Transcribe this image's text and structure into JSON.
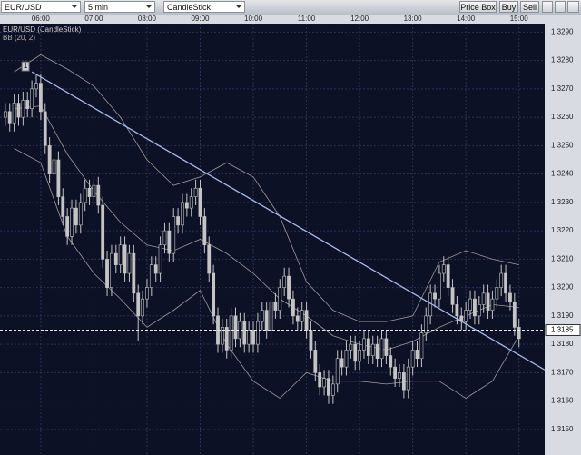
{
  "toolbar": {
    "symbol": "EUR/USD",
    "interval": "5 min",
    "chart_type": "CandleStick",
    "buttons": [
      "Price Box",
      "Buy",
      "Sell"
    ]
  },
  "chart_data": {
    "type": "candlestick",
    "title": "EUR/USD (CandleStick)",
    "indicator": "BB (20, 2)",
    "x": [
      320,
      325,
      330,
      335,
      340,
      345,
      350,
      355,
      360,
      365,
      370,
      375,
      380,
      385,
      390,
      395,
      400,
      405,
      410,
      415,
      420,
      425,
      430,
      435,
      440,
      445,
      450,
      455,
      460,
      465,
      470,
      475,
      480,
      485,
      490,
      495,
      500,
      505,
      510,
      515,
      520,
      525,
      530,
      535,
      540,
      545,
      550,
      555,
      560,
      565,
      570,
      575,
      580,
      585,
      590,
      595,
      600,
      605,
      610,
      615,
      620,
      625,
      630,
      635,
      640,
      645,
      650,
      655,
      660,
      665,
      670,
      675,
      680,
      685,
      690,
      695,
      700,
      705,
      710,
      715,
      720,
      725,
      730,
      735,
      740,
      745,
      750,
      755,
      760,
      765,
      770,
      775,
      780,
      785,
      790,
      795,
      800,
      805,
      810,
      815,
      820,
      825,
      830,
      835,
      840,
      845,
      850,
      855,
      860,
      865,
      870,
      875,
      880,
      885,
      890,
      895,
      900
    ],
    "open": [
      1.326,
      1.3262,
      1.3258,
      1.3265,
      1.326,
      1.3266,
      1.3263,
      1.327,
      1.3272,
      1.3262,
      1.325,
      1.324,
      1.3245,
      1.3232,
      1.3225,
      1.3218,
      1.3228,
      1.3222,
      1.323,
      1.3235,
      1.3232,
      1.3236,
      1.3229,
      1.321,
      1.32,
      1.3212,
      1.3208,
      1.3215,
      1.3205,
      1.3212,
      1.3198,
      1.319,
      1.3196,
      1.32,
      1.3208,
      1.3205,
      1.3215,
      1.322,
      1.3212,
      1.3225,
      1.3222,
      1.323,
      1.3228,
      1.3232,
      1.3235,
      1.3225,
      1.3215,
      1.3205,
      1.319,
      1.318,
      1.3186,
      1.3178,
      1.319,
      1.3182,
      1.3188,
      1.318,
      1.3185,
      1.318,
      1.3188,
      1.3192,
      1.3185,
      1.3195,
      1.3192,
      1.32,
      1.3204,
      1.3196,
      1.319,
      1.3188,
      1.3192,
      1.3185,
      1.3178,
      1.317,
      1.3165,
      1.3168,
      1.3162,
      1.3166,
      1.3175,
      1.3172,
      1.3178,
      1.318,
      1.3174,
      1.3178,
      1.3182,
      1.3176,
      1.318,
      1.3175,
      1.3182,
      1.3176,
      1.3172,
      1.3168,
      1.317,
      1.3164,
      1.3172,
      1.3178,
      1.3175,
      1.3184,
      1.319,
      1.3198,
      1.3196,
      1.3205,
      1.3208,
      1.32,
      1.3194,
      1.319,
      1.3188,
      1.3192,
      1.3196,
      1.319,
      1.3194,
      1.3198,
      1.3192,
      1.3196,
      1.32,
      1.3205,
      1.3198,
      1.3195,
      1.3186
    ],
    "high": [
      1.3265,
      1.3265,
      1.3268,
      1.3268,
      1.3269,
      1.3269,
      1.3273,
      1.3275,
      1.3275,
      1.3265,
      1.3253,
      1.3248,
      1.3248,
      1.3235,
      1.3228,
      1.3231,
      1.3231,
      1.3233,
      1.3238,
      1.3238,
      1.3239,
      1.3239,
      1.3232,
      1.3213,
      1.3215,
      1.3215,
      1.3218,
      1.3218,
      1.3215,
      1.3215,
      1.3201,
      1.3199,
      1.3203,
      1.3211,
      1.3211,
      1.3218,
      1.3223,
      1.3223,
      1.3228,
      1.3228,
      1.3233,
      1.3233,
      1.3235,
      1.3238,
      1.3238,
      1.3228,
      1.3218,
      1.3208,
      1.3193,
      1.3189,
      1.3189,
      1.3193,
      1.3193,
      1.3191,
      1.3191,
      1.3188,
      1.3188,
      1.3191,
      1.3195,
      1.3195,
      1.3198,
      1.3198,
      1.3203,
      1.3207,
      1.3207,
      1.3199,
      1.3193,
      1.3195,
      1.3195,
      1.3188,
      1.3181,
      1.3173,
      1.3171,
      1.3171,
      1.3169,
      1.3178,
      1.3178,
      1.3181,
      1.3183,
      1.3183,
      1.3181,
      1.3185,
      1.3185,
      1.3183,
      1.3183,
      1.3185,
      1.3185,
      1.3179,
      1.3175,
      1.3173,
      1.3173,
      1.3175,
      1.3181,
      1.3181,
      1.3187,
      1.3193,
      1.3201,
      1.3201,
      1.3208,
      1.3211,
      1.3211,
      1.3203,
      1.3197,
      1.3193,
      1.3195,
      1.3199,
      1.3199,
      1.3197,
      1.3201,
      1.3201,
      1.3199,
      1.3203,
      1.3208,
      1.3208,
      1.3201,
      1.3198,
      1.3189
    ],
    "low": [
      1.3257,
      1.3255,
      1.3255,
      1.3257,
      1.3257,
      1.326,
      1.326,
      1.3267,
      1.3259,
      1.3247,
      1.3237,
      1.3237,
      1.3229,
      1.3222,
      1.3215,
      1.3215,
      1.3219,
      1.3219,
      1.3227,
      1.3229,
      1.3229,
      1.3226,
      1.3207,
      1.3197,
      1.3197,
      1.3205,
      1.3205,
      1.3202,
      1.3202,
      1.3195,
      1.3181,
      1.3187,
      1.3193,
      1.3197,
      1.3202,
      1.3202,
      1.3212,
      1.3209,
      1.3209,
      1.3219,
      1.3219,
      1.3225,
      1.3225,
      1.3229,
      1.3222,
      1.3212,
      1.3202,
      1.3187,
      1.3177,
      1.3177,
      1.3175,
      1.3175,
      1.3179,
      1.3179,
      1.3177,
      1.3177,
      1.3177,
      1.3177,
      1.3185,
      1.3182,
      1.3182,
      1.3189,
      1.3189,
      1.3197,
      1.3193,
      1.3187,
      1.3185,
      1.3185,
      1.3182,
      1.3175,
      1.3167,
      1.3162,
      1.3162,
      1.3159,
      1.3159,
      1.3163,
      1.3169,
      1.3169,
      1.3175,
      1.3171,
      1.3171,
      1.3175,
      1.3173,
      1.3173,
      1.3172,
      1.3172,
      1.3173,
      1.3169,
      1.3165,
      1.3165,
      1.3161,
      1.3161,
      1.3169,
      1.3172,
      1.3172,
      1.3181,
      1.3187,
      1.3193,
      1.3193,
      1.3202,
      1.3197,
      1.3191,
      1.3187,
      1.3185,
      1.3185,
      1.3189,
      1.3187,
      1.3187,
      1.3191,
      1.3189,
      1.3189,
      1.3193,
      1.3197,
      1.3195,
      1.3192,
      1.3183,
      1.3179
    ],
    "close": [
      1.3262,
      1.3258,
      1.3265,
      1.326,
      1.3266,
      1.3263,
      1.327,
      1.3272,
      1.3262,
      1.325,
      1.324,
      1.3245,
      1.3232,
      1.3225,
      1.3218,
      1.3228,
      1.3222,
      1.323,
      1.3235,
      1.3232,
      1.3236,
      1.3229,
      1.321,
      1.32,
      1.3212,
      1.3208,
      1.3215,
      1.3205,
      1.3212,
      1.3198,
      1.319,
      1.3196,
      1.32,
      1.3208,
      1.3205,
      1.3215,
      1.322,
      1.3212,
      1.3225,
      1.3222,
      1.323,
      1.3228,
      1.3232,
      1.3235,
      1.3225,
      1.3215,
      1.3205,
      1.319,
      1.318,
      1.3186,
      1.3178,
      1.319,
      1.3182,
      1.3188,
      1.318,
      1.3185,
      1.318,
      1.3188,
      1.3192,
      1.3185,
      1.3195,
      1.3192,
      1.32,
      1.3204,
      1.3196,
      1.319,
      1.3188,
      1.3192,
      1.3185,
      1.3178,
      1.317,
      1.3165,
      1.3168,
      1.3162,
      1.3166,
      1.3175,
      1.3172,
      1.3178,
      1.318,
      1.3174,
      1.3178,
      1.3182,
      1.3176,
      1.318,
      1.3175,
      1.3182,
      1.3176,
      1.3172,
      1.3168,
      1.317,
      1.3164,
      1.3172,
      1.3178,
      1.3175,
      1.3184,
      1.319,
      1.3198,
      1.3196,
      1.3205,
      1.3208,
      1.32,
      1.3194,
      1.319,
      1.3188,
      1.3192,
      1.3196,
      1.319,
      1.3194,
      1.3198,
      1.3192,
      1.3196,
      1.32,
      1.3205,
      1.3198,
      1.3195,
      1.3186,
      1.3182
    ],
    "up_color": "#0d1126",
    "down_color": "#c4c4c4",
    "candle_outline": "#c4c4c4",
    "bands": {
      "color": "#9a9a9a",
      "x": [
        330,
        360,
        390,
        420,
        450,
        480,
        510,
        540,
        570,
        600,
        630,
        660,
        690,
        720,
        750,
        780,
        810,
        840,
        870,
        900
      ],
      "upper": [
        1.3276,
        1.3282,
        1.3277,
        1.3271,
        1.326,
        1.3245,
        1.3236,
        1.3239,
        1.3244,
        1.3239,
        1.3225,
        1.3202,
        1.3192,
        1.3188,
        1.3188,
        1.319,
        1.3209,
        1.3213,
        1.321,
        1.3208
      ],
      "middle": [
        1.3263,
        1.3264,
        1.3247,
        1.3234,
        1.3223,
        1.3215,
        1.3213,
        1.3217,
        1.3212,
        1.3205,
        1.3196,
        1.319,
        1.3183,
        1.318,
        1.3178,
        1.3181,
        1.3186,
        1.319,
        1.3194,
        1.3193
      ],
      "lower": [
        1.3249,
        1.3244,
        1.3218,
        1.3205,
        1.3196,
        1.3186,
        1.3192,
        1.3199,
        1.318,
        1.3167,
        1.3161,
        1.317,
        1.3167,
        1.3167,
        1.3166,
        1.3167,
        1.3167,
        1.3161,
        1.3167,
        1.3183
      ]
    },
    "trendline": {
      "label": "1",
      "color": "#a9bbea",
      "x": [
        350,
        929
      ],
      "y": [
        1.3276,
        1.3171
      ]
    },
    "price_line": {
      "value": 1.3185,
      "label": "1.3185"
    },
    "xlim": [
      314,
      929
    ],
    "ylim": [
      1.3141,
      1.3293
    ],
    "grid": true,
    "xticks": [
      {
        "value": 360,
        "label": "06:00"
      },
      {
        "value": 420,
        "label": "07:00"
      },
      {
        "value": 480,
        "label": "08:00"
      },
      {
        "value": 540,
        "label": "09:00"
      },
      {
        "value": 600,
        "label": "10:00"
      },
      {
        "value": 660,
        "label": "11:00"
      },
      {
        "value": 720,
        "label": "12:00"
      },
      {
        "value": 780,
        "label": "13:00"
      },
      {
        "value": 840,
        "label": "14:00"
      },
      {
        "value": 900,
        "label": "15:00"
      }
    ],
    "yticks": [
      {
        "value": 1.315,
        "label": "1.3150"
      },
      {
        "value": 1.316,
        "label": "1.3160"
      },
      {
        "value": 1.317,
        "label": "1.3170"
      },
      {
        "value": 1.318,
        "label": "1.3180"
      },
      {
        "value": 1.319,
        "label": "1.3190"
      },
      {
        "value": 1.32,
        "label": "1.3200"
      },
      {
        "value": 1.321,
        "label": "1.3210"
      },
      {
        "value": 1.322,
        "label": "1.3220"
      },
      {
        "value": 1.323,
        "label": "1.3230"
      },
      {
        "value": 1.324,
        "label": "1.3240"
      },
      {
        "value": 1.325,
        "label": "1.3250"
      },
      {
        "value": 1.326,
        "label": "1.3260"
      },
      {
        "value": 1.327,
        "label": "1.3270"
      },
      {
        "value": 1.328,
        "label": "1.3280"
      },
      {
        "value": 1.329,
        "label": "1.3290"
      }
    ]
  }
}
